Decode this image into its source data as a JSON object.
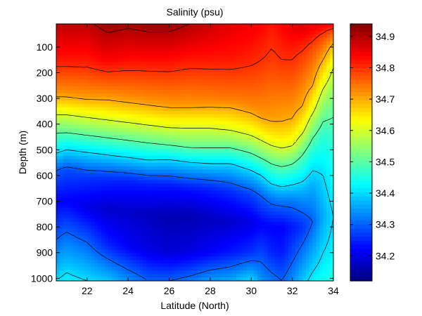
{
  "chart_data": {
    "type": "heatmap",
    "title": "Salinity (psu)",
    "xlabel": "Latitude (North)",
    "ylabel": "Depth (m)",
    "xlim": [
      20.5,
      34
    ],
    "ylim": [
      1010,
      10
    ],
    "x_ticks": [
      22,
      24,
      26,
      28,
      30,
      32,
      34
    ],
    "y_ticks": [
      100,
      200,
      300,
      400,
      500,
      600,
      700,
      800,
      900,
      1000
    ],
    "colorbar": {
      "range": [
        34.12,
        34.94
      ],
      "ticks": [
        34.2,
        34.3,
        34.4,
        34.5,
        34.6,
        34.7,
        34.8,
        34.9
      ],
      "colormap": "jet"
    },
    "contour_levels": [
      34.3,
      34.4,
      34.5,
      34.6,
      34.7,
      34.8,
      34.9
    ],
    "dashed_contour_level": 34.6,
    "latitudes": [
      20.5,
      21,
      22,
      23,
      24,
      25,
      26,
      27,
      28,
      29,
      30,
      30.5,
      31,
      31.5,
      32,
      32.5,
      33,
      33.5,
      34
    ],
    "profiles": [
      {
        "depth": [
          10,
          150,
          280,
          350,
          420,
          500,
          580,
          700,
          850,
          1010
        ],
        "salinity": [
          34.89,
          34.82,
          34.72,
          34.62,
          34.52,
          34.42,
          34.3,
          34.22,
          34.3,
          34.4
        ]
      },
      {
        "depth": [
          10,
          150,
          280,
          350,
          420,
          500,
          580,
          700,
          850,
          1010
        ],
        "salinity": [
          34.89,
          34.82,
          34.72,
          34.62,
          34.52,
          34.4,
          34.28,
          34.22,
          34.32,
          34.42
        ]
      },
      {
        "depth": [
          10,
          150,
          290,
          360,
          430,
          510,
          600,
          720,
          860,
          1010
        ],
        "salinity": [
          34.89,
          34.82,
          34.72,
          34.62,
          34.52,
          34.4,
          34.27,
          34.2,
          34.3,
          34.4
        ]
      },
      {
        "depth": [
          10,
          150,
          290,
          370,
          440,
          520,
          610,
          730,
          870,
          1010
        ],
        "salinity": [
          34.92,
          34.84,
          34.72,
          34.62,
          34.52,
          34.4,
          34.26,
          34.18,
          34.25,
          34.38
        ]
      },
      {
        "depth": [
          10,
          150,
          300,
          380,
          450,
          530,
          620,
          740,
          880,
          1010
        ],
        "salinity": [
          34.91,
          34.83,
          34.72,
          34.62,
          34.52,
          34.4,
          34.25,
          34.18,
          34.22,
          34.34
        ]
      },
      {
        "depth": [
          10,
          150,
          310,
          390,
          460,
          540,
          630,
          750,
          890,
          1010
        ],
        "salinity": [
          34.92,
          34.83,
          34.72,
          34.62,
          34.52,
          34.4,
          34.25,
          34.17,
          34.2,
          34.3
        ]
      },
      {
        "depth": [
          10,
          150,
          320,
          400,
          470,
          550,
          640,
          760,
          900,
          1010
        ],
        "salinity": [
          34.92,
          34.83,
          34.72,
          34.62,
          34.52,
          34.38,
          34.24,
          34.16,
          34.19,
          34.3
        ]
      },
      {
        "depth": [
          10,
          150,
          320,
          400,
          480,
          560,
          650,
          760,
          900,
          1010
        ],
        "salinity": [
          34.9,
          34.82,
          34.72,
          34.62,
          34.52,
          34.38,
          34.24,
          34.16,
          34.2,
          34.32
        ]
      },
      {
        "depth": [
          10,
          150,
          310,
          400,
          480,
          560,
          650,
          770,
          900,
          1010
        ],
        "salinity": [
          34.88,
          34.82,
          34.73,
          34.62,
          34.52,
          34.39,
          34.25,
          34.17,
          34.22,
          34.35
        ]
      },
      {
        "depth": [
          10,
          150,
          300,
          410,
          480,
          560,
          660,
          780,
          900,
          1010
        ],
        "salinity": [
          34.86,
          34.82,
          34.74,
          34.62,
          34.52,
          34.39,
          34.26,
          34.18,
          34.24,
          34.36
        ]
      },
      {
        "depth": [
          10,
          150,
          330,
          430,
          500,
          580,
          670,
          780,
          900,
          1010
        ],
        "salinity": [
          34.85,
          34.81,
          34.73,
          34.62,
          34.52,
          34.4,
          34.28,
          34.2,
          34.26,
          34.4
        ]
      },
      {
        "depth": [
          10,
          150,
          360,
          450,
          520,
          600,
          680,
          790,
          900,
          1010
        ],
        "salinity": [
          34.84,
          34.8,
          34.72,
          34.62,
          34.52,
          34.4,
          34.3,
          34.22,
          34.28,
          34.34
        ]
      },
      {
        "depth": [
          10,
          150,
          380,
          470,
          540,
          620,
          690,
          800,
          900,
          1010
        ],
        "salinity": [
          34.82,
          34.79,
          34.71,
          34.62,
          34.52,
          34.42,
          34.32,
          34.22,
          34.25,
          34.32
        ]
      },
      {
        "depth": [
          10,
          150,
          390,
          480,
          550,
          630,
          700,
          800,
          900,
          1010
        ],
        "salinity": [
          34.84,
          34.8,
          34.7,
          34.62,
          34.52,
          34.42,
          34.32,
          34.22,
          34.24,
          34.3
        ]
      },
      {
        "depth": [
          10,
          150,
          380,
          470,
          540,
          620,
          700,
          800,
          900,
          1010
        ],
        "salinity": [
          34.86,
          34.8,
          34.7,
          34.62,
          34.52,
          34.42,
          34.32,
          34.24,
          34.28,
          34.34
        ]
      },
      {
        "depth": [
          10,
          130,
          330,
          420,
          500,
          590,
          690,
          800,
          900,
          1010
        ],
        "salinity": [
          34.87,
          34.79,
          34.7,
          34.62,
          34.52,
          34.43,
          34.34,
          34.26,
          34.32,
          34.38
        ]
      },
      {
        "depth": [
          10,
          100,
          250,
          340,
          420,
          520,
          640,
          780,
          900,
          1010
        ],
        "salinity": [
          34.86,
          34.78,
          34.7,
          34.62,
          34.53,
          34.44,
          34.36,
          34.3,
          34.36,
          34.42
        ]
      },
      {
        "depth": [
          10,
          60,
          150,
          240,
          330,
          450,
          600,
          760,
          900,
          1010
        ],
        "salinity": [
          34.85,
          34.78,
          34.7,
          34.62,
          34.54,
          34.46,
          34.4,
          34.36,
          34.4,
          34.44
        ]
      },
      {
        "depth": [
          10,
          40,
          100,
          180,
          280,
          420,
          580,
          760,
          900,
          1010
        ],
        "salinity": [
          34.84,
          34.77,
          34.68,
          34.6,
          34.54,
          34.48,
          34.44,
          34.4,
          34.42,
          34.46
        ]
      }
    ]
  }
}
